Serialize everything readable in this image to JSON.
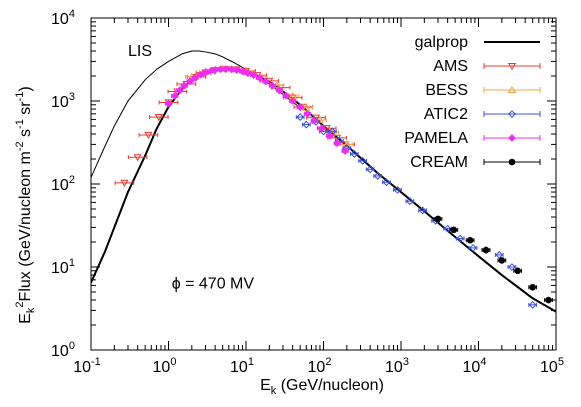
{
  "chart_data": {
    "type": "scatter",
    "title": "",
    "xlabel": "E",
    "xlabel_sub": "k",
    "xlabel_rest": " (GeV/nucleon)",
    "ylabel": "E",
    "ylabel_sub": "k",
    "ylabel_sup": "2",
    "ylabel_rest": "Flux (GeV/nucleon m",
    "ylabel_sup2": "-2",
    "ylabel_mid": " s",
    "ylabel_sup3": "-1",
    "ylabel_mid2": " sr",
    "ylabel_sup4": "-1",
    "ylabel_end": ")",
    "x_scale": "log",
    "y_scale": "log",
    "xlim": [
      0.1,
      100000
    ],
    "ylim": [
      1,
      10000
    ],
    "x_ticks": [
      {
        "base": "10",
        "exp": "-1"
      },
      {
        "base": "10",
        "exp": "0"
      },
      {
        "base": "10",
        "exp": "1"
      },
      {
        "base": "10",
        "exp": "2"
      },
      {
        "base": "10",
        "exp": "3"
      },
      {
        "base": "10",
        "exp": "4"
      },
      {
        "base": "10",
        "exp": "5"
      }
    ],
    "y_ticks": [
      {
        "base": "10",
        "exp": "0"
      },
      {
        "base": "10",
        "exp": "1"
      },
      {
        "base": "10",
        "exp": "2"
      },
      {
        "base": "10",
        "exp": "3"
      },
      {
        "base": "10",
        "exp": "4"
      }
    ],
    "annotations": [
      {
        "text": "LIS",
        "x": 0.3,
        "y": 3500
      },
      {
        "text": "ϕ = 470 MV",
        "x": 1.1,
        "y": 5.5
      }
    ],
    "legend_position": "top-right",
    "series": [
      {
        "name": "galprop",
        "kind": "line",
        "color": "#000000",
        "x": [
          0.1,
          0.15,
          0.2,
          0.3,
          0.5,
          0.7,
          1,
          1.5,
          2,
          3,
          5,
          7,
          10,
          20,
          30,
          50,
          100,
          200,
          500,
          1000,
          2000,
          5000,
          10000,
          20000,
          50000,
          100000
        ],
        "y": [
          6.5,
          15,
          30,
          80,
          220,
          460,
          850,
          1400,
          1800,
          2200,
          2450,
          2450,
          2300,
          1700,
          1300,
          900,
          500,
          290,
          135,
          80,
          47,
          23,
          13.5,
          8,
          4.2,
          2.9
        ]
      },
      {
        "name": "",
        "kind": "line-thin",
        "color": "#000000",
        "x": [
          0.1,
          0.15,
          0.2,
          0.3,
          0.5,
          0.7,
          1,
          1.5,
          2,
          2.5,
          3,
          4,
          5,
          7,
          10,
          20,
          30,
          50
        ],
        "y": [
          120,
          280,
          500,
          1000,
          1800,
          2400,
          3000,
          3700,
          4000,
          4000,
          3900,
          3700,
          3400,
          2900,
          2400,
          1600,
          1200,
          830
        ]
      },
      {
        "name": "AMS",
        "kind": "points",
        "marker": "triangle-down",
        "color": "#e8392e",
        "x": [
          0.27,
          0.4,
          0.55,
          0.75,
          1.0,
          1.3,
          1.7,
          2.3,
          3,
          4,
          5.5,
          7.5,
          10,
          14,
          20,
          28,
          40,
          55,
          80,
          110,
          150,
          190
        ],
        "y": [
          103,
          210,
          390,
          640,
          960,
          1300,
          1600,
          1950,
          2200,
          2350,
          2420,
          2400,
          2300,
          2050,
          1750,
          1450,
          1100,
          850,
          630,
          470,
          360,
          300
        ],
        "xerr": 0.12
      },
      {
        "name": "BESS",
        "kind": "points",
        "marker": "triangle-up",
        "color": "#f5a04a",
        "x": [
          2,
          3,
          5,
          7,
          10,
          15,
          25,
          40,
          60,
          90,
          130,
          200
        ],
        "y": [
          1950,
          2250,
          2450,
          2400,
          2250,
          1950,
          1550,
          1150,
          830,
          590,
          420,
          300
        ],
        "xerr": 0.08
      },
      {
        "name": "ATIC2",
        "kind": "points",
        "marker": "diamond-open",
        "color": "#3a4fd8",
        "x": [
          50,
          60,
          80,
          100,
          130,
          160,
          200,
          250,
          320,
          400,
          500,
          650,
          900,
          1300,
          1900,
          2800,
          4000,
          5800,
          8500,
          12500,
          18500,
          27000,
          50000
        ],
        "y": [
          640,
          520,
          560,
          430,
          430,
          330,
          270,
          230,
          190,
          150,
          125,
          105,
          85,
          62,
          48,
          36,
          29,
          22,
          17,
          16,
          14,
          10,
          3.5
        ],
        "xerr": 0.05
      },
      {
        "name": "PAMELA",
        "kind": "points",
        "marker": "star",
        "color": "#ec2ef0",
        "x": [
          1.0,
          1.2,
          1.4,
          1.6,
          1.9,
          2.2,
          2.6,
          3.0,
          3.5,
          4.0,
          4.7,
          5.5,
          6.5,
          7.6,
          9,
          10.5,
          12.5,
          15,
          18,
          22,
          27,
          33,
          40,
          50,
          62,
          76,
          95,
          120,
          150,
          190
        ],
        "y": [
          930,
          1150,
          1350,
          1530,
          1730,
          1900,
          2070,
          2200,
          2300,
          2370,
          2420,
          2430,
          2410,
          2360,
          2280,
          2180,
          2050,
          1900,
          1720,
          1530,
          1340,
          1160,
          1000,
          840,
          700,
          580,
          470,
          380,
          310,
          250
        ],
        "xerr": 0.04
      },
      {
        "name": "CREAM",
        "kind": "points",
        "marker": "circle-filled",
        "color": "#000000",
        "x": [
          3000,
          4800,
          7800,
          12500,
          20000,
          32000,
          50000,
          80000
        ],
        "y": [
          38,
          28,
          21,
          16,
          12,
          9,
          5.7,
          4.0
        ],
        "xerr": 0.05
      }
    ]
  }
}
